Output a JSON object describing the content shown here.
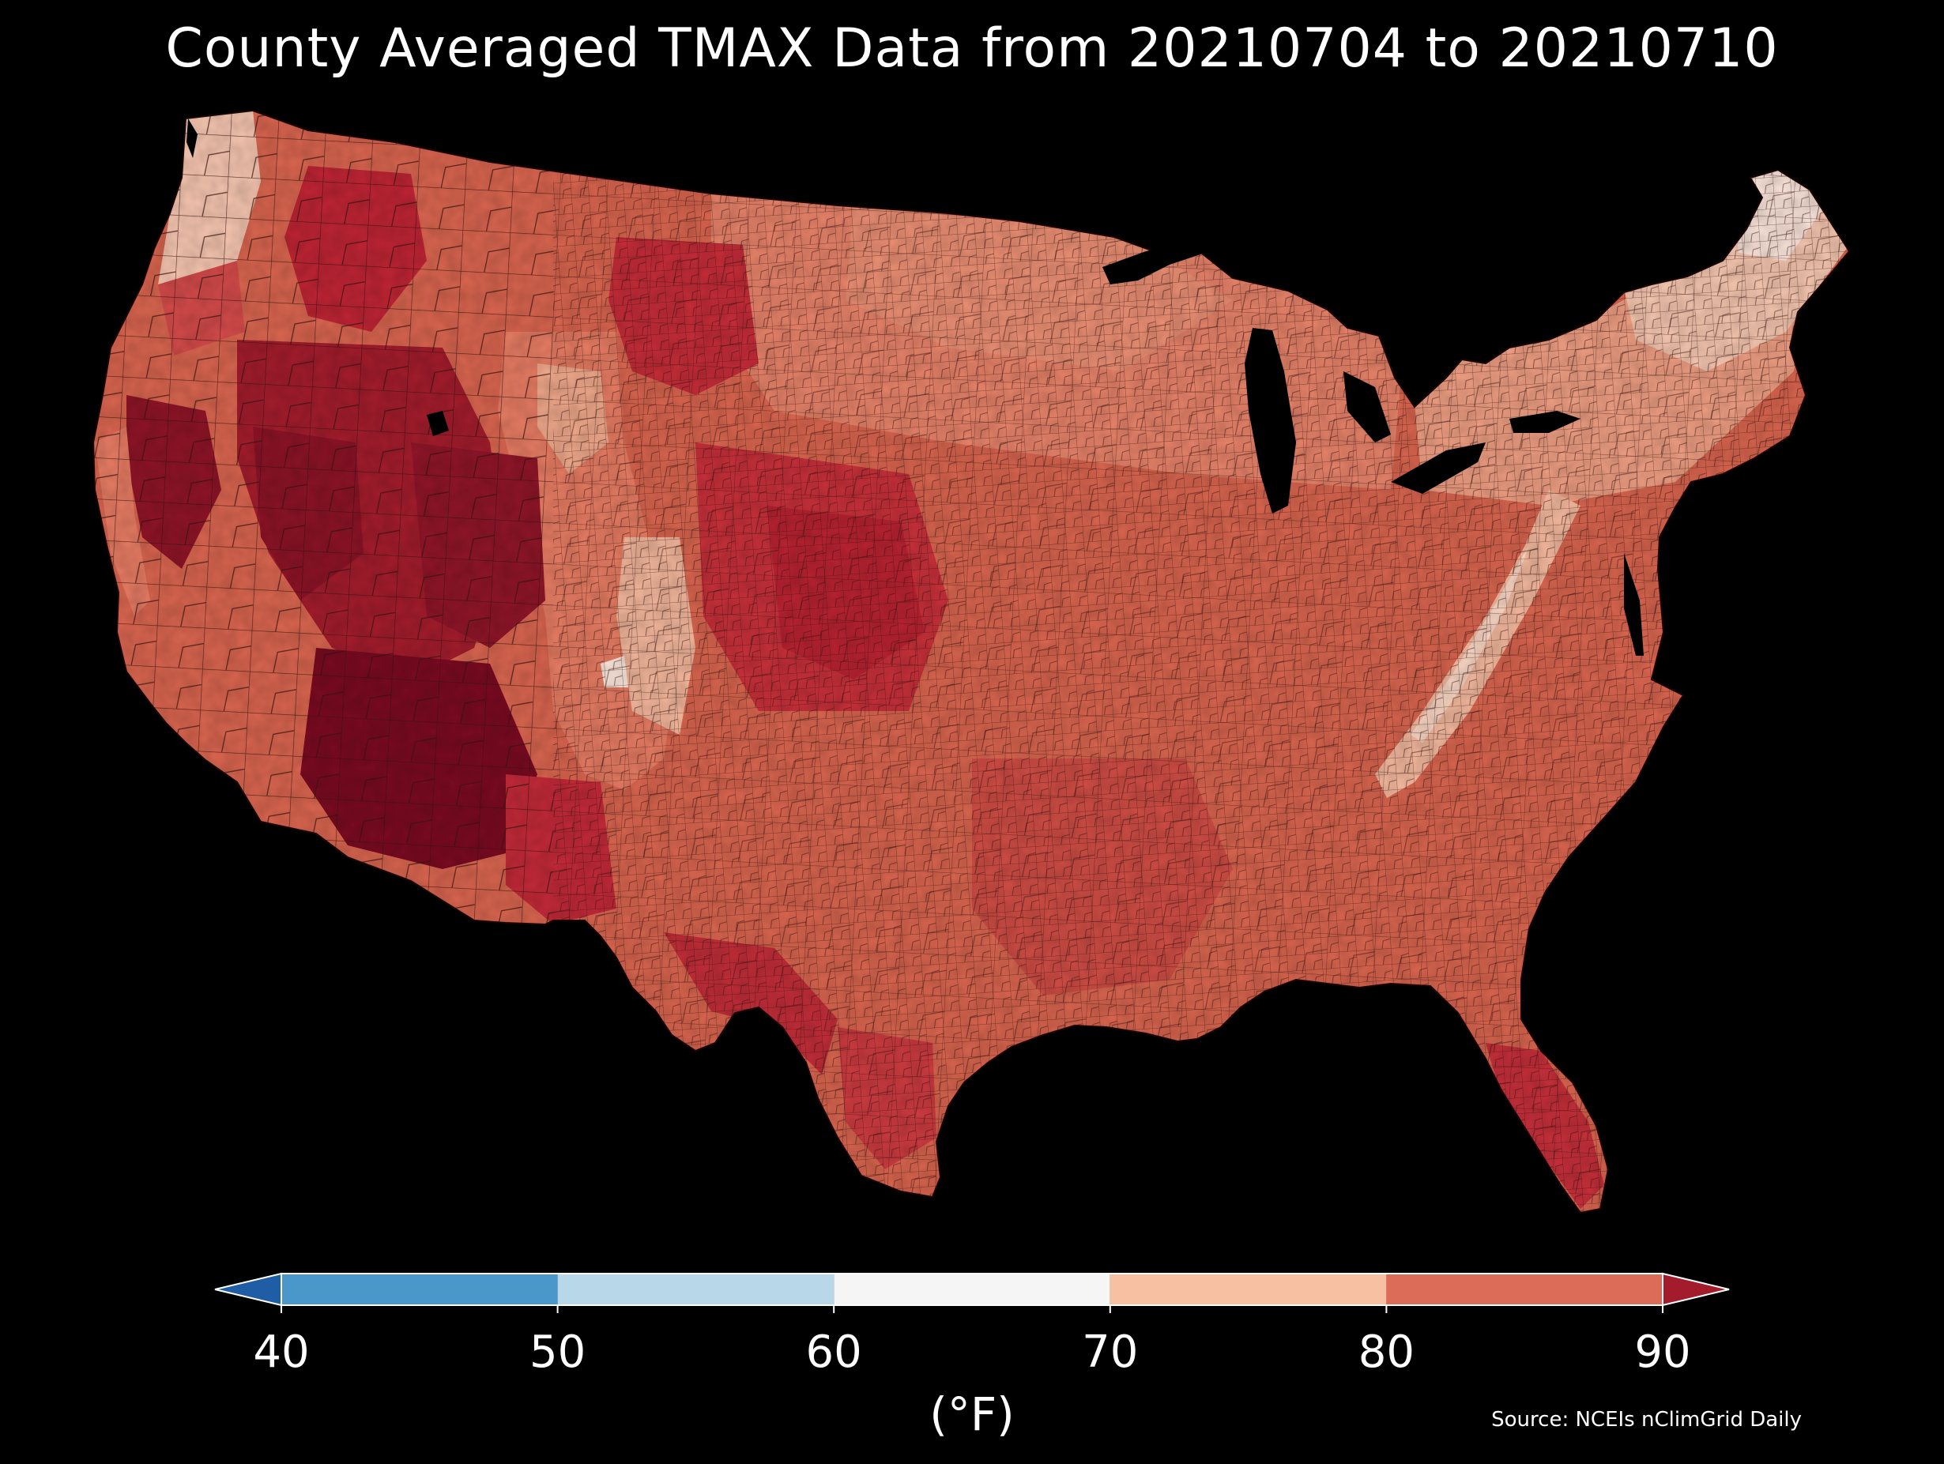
{
  "title": "County Averaged TMAX Data from 20210704 to 20210710",
  "colorbar": {
    "unit_label": "(°F)",
    "ticks": [
      "40",
      "50",
      "60",
      "70",
      "80",
      "90"
    ],
    "bins": [
      {
        "range": [
          40,
          50
        ],
        "color": "#4a98c9"
      },
      {
        "range": [
          50,
          60
        ],
        "color": "#b8d8e9"
      },
      {
        "range": [
          60,
          70
        ],
        "color": "#f5f5f5"
      },
      {
        "range": [
          70,
          80
        ],
        "color": "#f8c0a3"
      },
      {
        "range": [
          80,
          90
        ],
        "color": "#dc6b58"
      }
    ],
    "under_color": "#1f5da4",
    "over_color": "#a31c2c",
    "extend": "both"
  },
  "source": "Source: NCEIs nClimGrid Daily",
  "map": {
    "region": "contiguous United States",
    "unit": "county",
    "background_color": "#000000",
    "border_color": "#2a2a2a"
  }
}
